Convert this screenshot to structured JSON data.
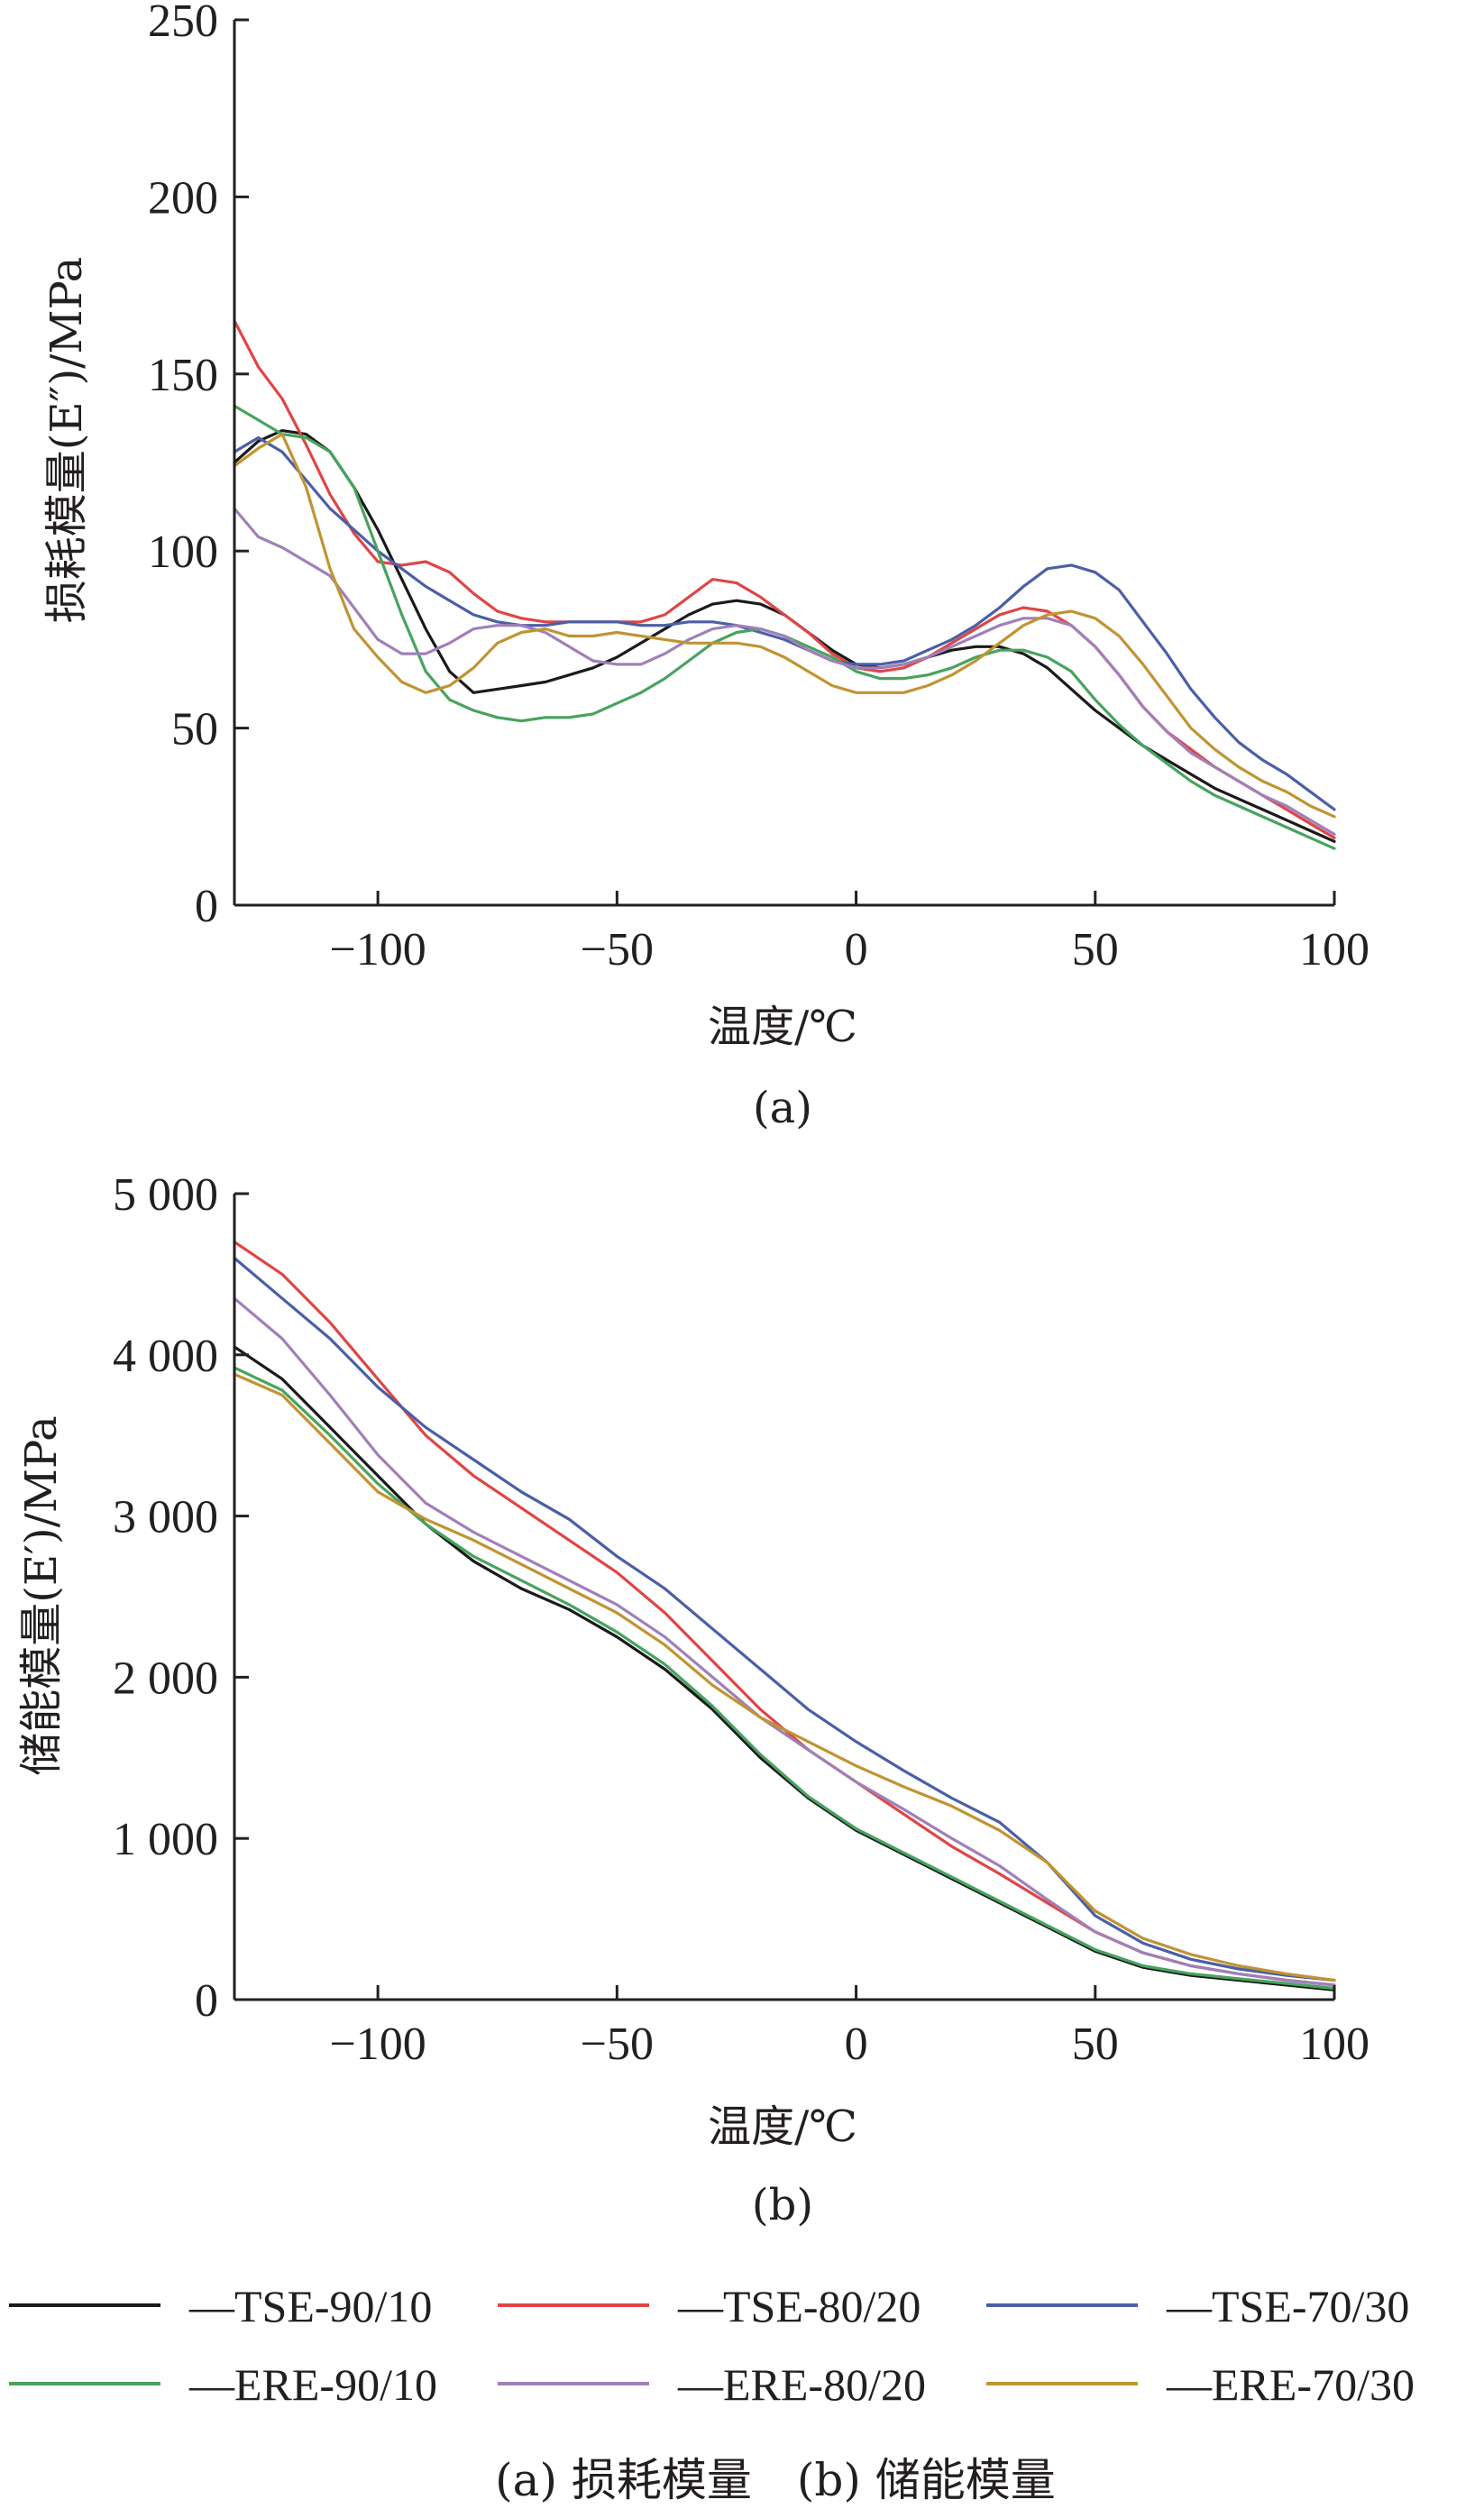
{
  "colors": {
    "TSE-90/10": "#1a1a1a",
    "TSE-80/20": "#e04545",
    "TSE-70/30": "#4a5fa6",
    "ERE-90/10": "#48a35e",
    "ERE-80/20": "#a080b8",
    "ERE-70/30": "#c09433",
    "axis": "#231f20"
  },
  "legend": [
    {
      "key": "TSE-90/10",
      "label": "—TSE-90/10"
    },
    {
      "key": "TSE-80/20",
      "label": "—TSE-80/20"
    },
    {
      "key": "TSE-70/30",
      "label": "—TSE-70/30"
    },
    {
      "key": "ERE-90/10",
      "label": "—ERE-90/10"
    },
    {
      "key": "ERE-80/20",
      "label": "—ERE-80/20"
    },
    {
      "key": "ERE-70/30",
      "label": "—ERE-70/30"
    }
  ],
  "caption": "(a) 损耗模量　(b) 储能模量",
  "chart_data": [
    {
      "type": "line",
      "panel_label": "(a)",
      "xlabel": "温度/℃",
      "ylabel": "损耗模量(E″)/MPa",
      "xlim": [
        -130,
        100
      ],
      "ylim": [
        0,
        250
      ],
      "xticks": [
        -100,
        -50,
        0,
        50,
        100
      ],
      "xtick_labels": [
        "−100",
        "−50",
        "0",
        "50",
        "100"
      ],
      "yticks": [
        0,
        50,
        100,
        150,
        200,
        250
      ],
      "ytick_labels": [
        "0",
        "50",
        "100",
        "150",
        "200",
        "250"
      ],
      "series": [
        {
          "name": "TSE-90/10",
          "x": [
            -130,
            -125,
            -120,
            -115,
            -110,
            -105,
            -100,
            -95,
            -90,
            -85,
            -80,
            -75,
            -70,
            -65,
            -60,
            -55,
            -50,
            -45,
            -40,
            -35,
            -30,
            -25,
            -20,
            -15,
            -10,
            -5,
            0,
            5,
            10,
            15,
            20,
            25,
            30,
            35,
            40,
            45,
            50,
            55,
            60,
            65,
            70,
            75,
            80,
            85,
            90,
            95,
            100
          ],
          "y": [
            125,
            131,
            134,
            133,
            128,
            118,
            106,
            92,
            78,
            66,
            60,
            61,
            62,
            63,
            65,
            67,
            70,
            74,
            78,
            82,
            85,
            86,
            85,
            82,
            77,
            72,
            68,
            67,
            68,
            70,
            72,
            73,
            73,
            71,
            67,
            61,
            55,
            50,
            45,
            41,
            37,
            33,
            30,
            27,
            24,
            21,
            18
          ]
        },
        {
          "name": "TSE-80/20",
          "x": [
            -130,
            -125,
            -120,
            -115,
            -110,
            -105,
            -100,
            -95,
            -90,
            -85,
            -80,
            -75,
            -70,
            -65,
            -60,
            -55,
            -50,
            -45,
            -40,
            -35,
            -30,
            -25,
            -20,
            -15,
            -10,
            -5,
            0,
            5,
            10,
            15,
            20,
            25,
            30,
            35,
            40,
            45,
            50,
            55,
            60,
            65,
            70,
            75,
            80,
            85,
            90,
            95,
            100
          ],
          "y": [
            165,
            152,
            143,
            130,
            116,
            105,
            97,
            96,
            97,
            94,
            88,
            83,
            81,
            80,
            80,
            80,
            80,
            80,
            82,
            87,
            92,
            91,
            87,
            82,
            77,
            71,
            67,
            66,
            67,
            70,
            74,
            78,
            82,
            84,
            83,
            79,
            73,
            65,
            56,
            49,
            44,
            39,
            35,
            31,
            27,
            23,
            19
          ]
        },
        {
          "name": "TSE-70/30",
          "x": [
            -130,
            -125,
            -120,
            -115,
            -110,
            -105,
            -100,
            -95,
            -90,
            -85,
            -80,
            -75,
            -70,
            -65,
            -60,
            -55,
            -50,
            -45,
            -40,
            -35,
            -30,
            -25,
            -20,
            -15,
            -10,
            -5,
            0,
            5,
            10,
            15,
            20,
            25,
            30,
            35,
            40,
            45,
            50,
            55,
            60,
            65,
            70,
            75,
            80,
            85,
            90,
            95,
            100
          ],
          "y": [
            128,
            132,
            128,
            120,
            112,
            106,
            100,
            95,
            90,
            86,
            82,
            80,
            79,
            79,
            80,
            80,
            80,
            79,
            79,
            80,
            80,
            79,
            77,
            75,
            72,
            69,
            68,
            68,
            69,
            72,
            75,
            79,
            84,
            90,
            95,
            96,
            94,
            89,
            80,
            71,
            61,
            53,
            46,
            41,
            37,
            32,
            27
          ]
        },
        {
          "name": "ERE-90/10",
          "x": [
            -130,
            -125,
            -120,
            -115,
            -110,
            -105,
            -100,
            -95,
            -90,
            -85,
            -80,
            -75,
            -70,
            -65,
            -60,
            -55,
            -50,
            -45,
            -40,
            -35,
            -30,
            -25,
            -20,
            -15,
            -10,
            -5,
            0,
            5,
            10,
            15,
            20,
            25,
            30,
            35,
            40,
            45,
            50,
            55,
            60,
            65,
            70,
            75,
            80,
            85,
            90,
            95,
            100
          ],
          "y": [
            141,
            137,
            133,
            132,
            128,
            118,
            100,
            82,
            66,
            58,
            55,
            53,
            52,
            53,
            53,
            54,
            57,
            60,
            64,
            69,
            74,
            77,
            78,
            76,
            73,
            70,
            66,
            64,
            64,
            65,
            67,
            70,
            72,
            72,
            70,
            66,
            58,
            51,
            45,
            40,
            35,
            31,
            28,
            25,
            22,
            19,
            16
          ]
        },
        {
          "name": "ERE-80/20",
          "x": [
            -130,
            -125,
            -120,
            -115,
            -110,
            -105,
            -100,
            -95,
            -90,
            -85,
            -80,
            -75,
            -70,
            -65,
            -60,
            -55,
            -50,
            -45,
            -40,
            -35,
            -30,
            -25,
            -20,
            -15,
            -10,
            -5,
            0,
            5,
            10,
            15,
            20,
            25,
            30,
            35,
            40,
            45,
            50,
            55,
            60,
            65,
            70,
            75,
            80,
            85,
            90,
            95,
            100
          ],
          "y": [
            112,
            104,
            101,
            97,
            93,
            84,
            75,
            71,
            71,
            74,
            78,
            79,
            79,
            77,
            73,
            69,
            68,
            68,
            71,
            75,
            78,
            79,
            78,
            76,
            72,
            69,
            67,
            67,
            68,
            70,
            73,
            76,
            79,
            81,
            81,
            79,
            73,
            65,
            56,
            49,
            43,
            39,
            35,
            31,
            28,
            24,
            20
          ]
        },
        {
          "name": "ERE-70/30",
          "x": [
            -130,
            -125,
            -120,
            -115,
            -110,
            -105,
            -100,
            -95,
            -90,
            -85,
            -80,
            -75,
            -70,
            -65,
            -60,
            -55,
            -50,
            -45,
            -40,
            -35,
            -30,
            -25,
            -20,
            -15,
            -10,
            -5,
            0,
            5,
            10,
            15,
            20,
            25,
            30,
            35,
            40,
            45,
            50,
            55,
            60,
            65,
            70,
            75,
            80,
            85,
            90,
            95,
            100
          ],
          "y": [
            124,
            129,
            133,
            118,
            95,
            78,
            70,
            63,
            60,
            62,
            67,
            74,
            77,
            78,
            76,
            76,
            77,
            76,
            75,
            74,
            74,
            74,
            73,
            70,
            66,
            62,
            60,
            60,
            60,
            62,
            65,
            69,
            74,
            79,
            82,
            83,
            81,
            76,
            68,
            59,
            50,
            44,
            39,
            35,
            32,
            28,
            25
          ]
        }
      ]
    },
    {
      "type": "line",
      "panel_label": "(b)",
      "xlabel": "温度/℃",
      "ylabel": "储能模量(E′)/MPa",
      "xlim": [
        -130,
        100
      ],
      "ylim": [
        0,
        5000
      ],
      "xticks": [
        -100,
        -50,
        0,
        50,
        100
      ],
      "xtick_labels": [
        "−100",
        "−50",
        "0",
        "50",
        "100"
      ],
      "yticks": [
        0,
        1000,
        2000,
        3000,
        4000,
        5000
      ],
      "ytick_labels": [
        "0",
        "1 000",
        "2 000",
        "3 000",
        "4 000",
        "5 000"
      ],
      "series": [
        {
          "name": "TSE-90/10",
          "x": [
            -130,
            -120,
            -110,
            -100,
            -90,
            -80,
            -70,
            -60,
            -50,
            -40,
            -30,
            -20,
            -10,
            0,
            10,
            20,
            30,
            40,
            50,
            60,
            70,
            80,
            90,
            100
          ],
          "y": [
            4050,
            3850,
            3550,
            3250,
            2950,
            2720,
            2550,
            2420,
            2250,
            2050,
            1800,
            1500,
            1250,
            1050,
            900,
            750,
            600,
            450,
            300,
            200,
            150,
            120,
            90,
            60
          ]
        },
        {
          "name": "TSE-80/20",
          "x": [
            -130,
            -120,
            -110,
            -100,
            -90,
            -80,
            -70,
            -60,
            -50,
            -40,
            -30,
            -20,
            -10,
            0,
            10,
            20,
            30,
            40,
            50,
            60,
            70,
            80,
            90,
            100
          ],
          "y": [
            4700,
            4500,
            4200,
            3850,
            3500,
            3250,
            3050,
            2850,
            2650,
            2400,
            2100,
            1800,
            1550,
            1350,
            1150,
            950,
            780,
            600,
            420,
            290,
            210,
            160,
            120,
            90
          ]
        },
        {
          "name": "TSE-70/30",
          "x": [
            -130,
            -120,
            -110,
            -100,
            -90,
            -80,
            -70,
            -60,
            -50,
            -40,
            -30,
            -20,
            -10,
            0,
            10,
            20,
            30,
            40,
            50,
            60,
            70,
            80,
            90,
            100
          ],
          "y": [
            4600,
            4350,
            4100,
            3800,
            3550,
            3350,
            3150,
            2980,
            2750,
            2550,
            2300,
            2050,
            1800,
            1600,
            1420,
            1250,
            1100,
            850,
            520,
            350,
            250,
            190,
            150,
            120
          ]
        },
        {
          "name": "ERE-90/10",
          "x": [
            -130,
            -120,
            -110,
            -100,
            -90,
            -80,
            -70,
            -60,
            -50,
            -40,
            -30,
            -20,
            -10,
            0,
            10,
            20,
            30,
            40,
            50,
            60,
            70,
            80,
            90,
            100
          ],
          "y": [
            3920,
            3780,
            3500,
            3200,
            2950,
            2750,
            2600,
            2450,
            2280,
            2080,
            1820,
            1520,
            1260,
            1060,
            910,
            760,
            610,
            460,
            310,
            210,
            160,
            130,
            100,
            70
          ]
        },
        {
          "name": "ERE-80/20",
          "x": [
            -130,
            -120,
            -110,
            -100,
            -90,
            -80,
            -70,
            -60,
            -50,
            -40,
            -30,
            -20,
            -10,
            0,
            10,
            20,
            30,
            40,
            50,
            60,
            70,
            80,
            90,
            100
          ],
          "y": [
            4350,
            4100,
            3750,
            3380,
            3080,
            2900,
            2750,
            2600,
            2450,
            2250,
            2000,
            1750,
            1550,
            1350,
            1180,
            1000,
            830,
            620,
            420,
            290,
            210,
            160,
            120,
            90
          ]
        },
        {
          "name": "ERE-70/30",
          "x": [
            -130,
            -120,
            -110,
            -100,
            -90,
            -80,
            -70,
            -60,
            -50,
            -40,
            -30,
            -20,
            -10,
            0,
            10,
            20,
            30,
            40,
            50,
            60,
            70,
            80,
            90,
            100
          ],
          "y": [
            3880,
            3750,
            3450,
            3150,
            2980,
            2850,
            2700,
            2550,
            2400,
            2200,
            1950,
            1750,
            1600,
            1450,
            1320,
            1200,
            1050,
            850,
            550,
            380,
            280,
            210,
            160,
            120
          ]
        }
      ]
    }
  ]
}
